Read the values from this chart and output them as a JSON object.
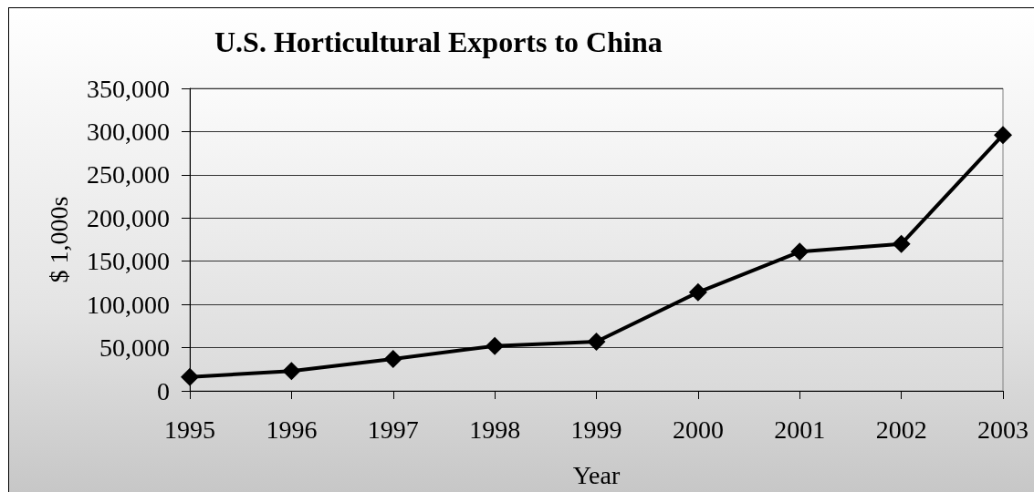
{
  "chart_data": {
    "type": "line",
    "title": "U.S. Horticultural Exports to China",
    "xlabel": "Year",
    "ylabel": "$ 1,000s",
    "categories": [
      "1995",
      "1996",
      "1997",
      "1998",
      "1999",
      "2000",
      "2001",
      "2002",
      "2003"
    ],
    "values": [
      16000,
      23000,
      37000,
      52000,
      57000,
      114000,
      161000,
      170000,
      296000
    ],
    "color": "#000000",
    "ylim": [
      0,
      350000
    ],
    "yticks": [
      0,
      {
        "value": 50000,
        "label": "50,000"
      },
      {
        "value": 100000,
        "label": "100,000"
      },
      {
        "value": 150000,
        "label": "150,000"
      },
      {
        "value": 200000,
        "label": "200,000"
      },
      {
        "value": 250000,
        "label": "250,000"
      },
      {
        "value": 300000,
        "label": "300,000"
      },
      {
        "value": 350000,
        "label": "350,000"
      }
    ],
    "grid": "y",
    "marker": "diamond",
    "line_style": "solid"
  }
}
